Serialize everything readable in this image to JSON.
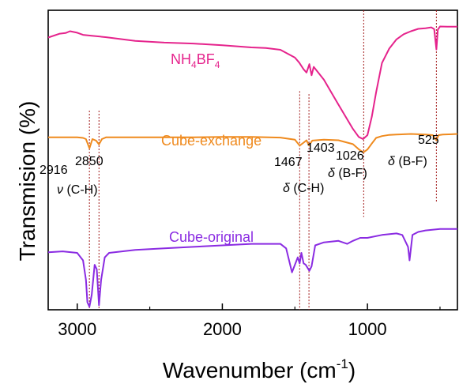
{
  "chart_data": {
    "type": "line",
    "xlabel": "Wavenumber (cm",
    "xlabel_sup": "-1",
    "xlabel_close": ")",
    "ylabel": "Transmision (%)",
    "xlim": [
      3200,
      380
    ],
    "x_reversed": true,
    "x_ticks": [
      {
        "value": 3000,
        "label": "3000"
      },
      {
        "value": 2000,
        "label": "2000"
      },
      {
        "value": 1000,
        "label": "1000"
      }
    ],
    "ylim": [
      0,
      100
    ],
    "y_ticks_shown": false,
    "grid": false,
    "series": [
      {
        "name": "NH4BF4",
        "color": "#e5238c",
        "label_main": "NH",
        "label_sub1": "4",
        "label_mid": "BF",
        "label_sub2": "4",
        "x": [
          3200,
          3120,
          3080,
          3050,
          3000,
          2960,
          2900,
          2800,
          2600,
          2400,
          2200,
          2000,
          1800,
          1700,
          1600,
          1500,
          1470,
          1440,
          1420,
          1400,
          1385,
          1370,
          1300,
          1200,
          1100,
          1060,
          1030,
          1000,
          970,
          940,
          900,
          850,
          800,
          750,
          700,
          650,
          600,
          560,
          540,
          525,
          515,
          500,
          450,
          420,
          380
        ],
        "y": [
          90.9,
          92.2,
          92.4,
          93.0,
          92.5,
          91.8,
          91.5,
          91.0,
          89.8,
          89.2,
          88.9,
          88.3,
          87.6,
          87.4,
          86.8,
          84.2,
          82.5,
          80.3,
          79.2,
          82.0,
          78.3,
          81.1,
          76.8,
          68.5,
          60.4,
          57.7,
          57.0,
          58.3,
          64.4,
          72.6,
          82.4,
          87.2,
          90.3,
          92.0,
          93.0,
          93.8,
          94.0,
          94.3,
          93.7,
          86.9,
          93.5,
          94.6,
          94.5,
          94.5,
          94.5
        ]
      },
      {
        "name": "Cube-exchange",
        "color": "#ef8a1e",
        "x": [
          3200,
          3100,
          3000,
          2960,
          2940,
          2916,
          2895,
          2870,
          2850,
          2830,
          2800,
          2600,
          2400,
          2200,
          2000,
          1800,
          1600,
          1500,
          1467,
          1440,
          1420,
          1403,
          1380,
          1300,
          1200,
          1100,
          1060,
          1030,
          1026,
          1000,
          970,
          940,
          900,
          850,
          800,
          750,
          700,
          650,
          600,
          550,
          525,
          510,
          480,
          420,
          380
        ],
        "y": [
          57.6,
          57.6,
          57.6,
          57.4,
          57.0,
          53.9,
          57.0,
          56.5,
          55.2,
          57.0,
          57.6,
          57.6,
          57.6,
          57.6,
          57.7,
          57.7,
          57.5,
          56.8,
          54.8,
          55.8,
          56.6,
          54.9,
          56.5,
          56.8,
          56.6,
          55.3,
          53.6,
          52.6,
          52.6,
          53.5,
          55.5,
          57.4,
          58.0,
          58.4,
          58.5,
          58.6,
          58.7,
          58.6,
          58.5,
          58.3,
          56.6,
          58.3,
          58.5,
          58.6,
          58.7
        ]
      },
      {
        "name": "Cube-original",
        "color": "#8a2be2",
        "x": [
          3200,
          3100,
          3000,
          2960,
          2940,
          2930,
          2916,
          2900,
          2880,
          2865,
          2850,
          2835,
          2810,
          2780,
          2600,
          2400,
          2200,
          2000,
          1800,
          1600,
          1560,
          1520,
          1480,
          1467,
          1455,
          1440,
          1425,
          1400,
          1385,
          1360,
          1300,
          1200,
          1140,
          1100,
          1050,
          1000,
          900,
          800,
          760,
          720,
          710,
          690,
          650,
          600,
          500,
          450,
          380
        ],
        "y": [
          19.2,
          19.5,
          19.0,
          16.5,
          10.0,
          2.5,
          1.0,
          5.0,
          15.0,
          13.5,
          1.5,
          10.0,
          17.5,
          19.0,
          20.0,
          20.5,
          21.0,
          21.5,
          22.0,
          22.0,
          20.5,
          12.5,
          17.5,
          15.5,
          19.0,
          15.5,
          15.0,
          13.0,
          14.5,
          21.5,
          22.5,
          23.0,
          22.0,
          23.0,
          24.0,
          24.0,
          25.0,
          25.5,
          25.0,
          21.0,
          16.5,
          25.0,
          26.0,
          26.5,
          27.0,
          27.0,
          27.0
        ]
      }
    ],
    "vlines": [
      {
        "x": 2916,
        "y_top": 66.5,
        "y_bottom": 0
      },
      {
        "x": 2850,
        "y_top": 66.5,
        "y_bottom": 0
      },
      {
        "x": 1467,
        "y_top": 73.0,
        "y_bottom": 0
      },
      {
        "x": 1403,
        "y_top": 72.0,
        "y_bottom": 0
      },
      {
        "x": 1026,
        "y_top": 100,
        "y_bottom": 31.0
      },
      {
        "x": 525,
        "y_top": 100,
        "y_bottom": 36.0
      }
    ],
    "annotations": {
      "a2916": "2916",
      "a2850": "2850",
      "nu_symbol": "ν",
      "nu_text": " (C-H)",
      "a1467": "1467",
      "a1403": "1403",
      "delta_symbol": "δ",
      "ch_text": " (C-H)",
      "a1026": "1026",
      "bf_text": " (B-F)",
      "a525": "525",
      "bf_text2": " (B-F)"
    },
    "series_labels": {
      "exchange": "Cube-exchange",
      "original": "Cube-original"
    }
  }
}
